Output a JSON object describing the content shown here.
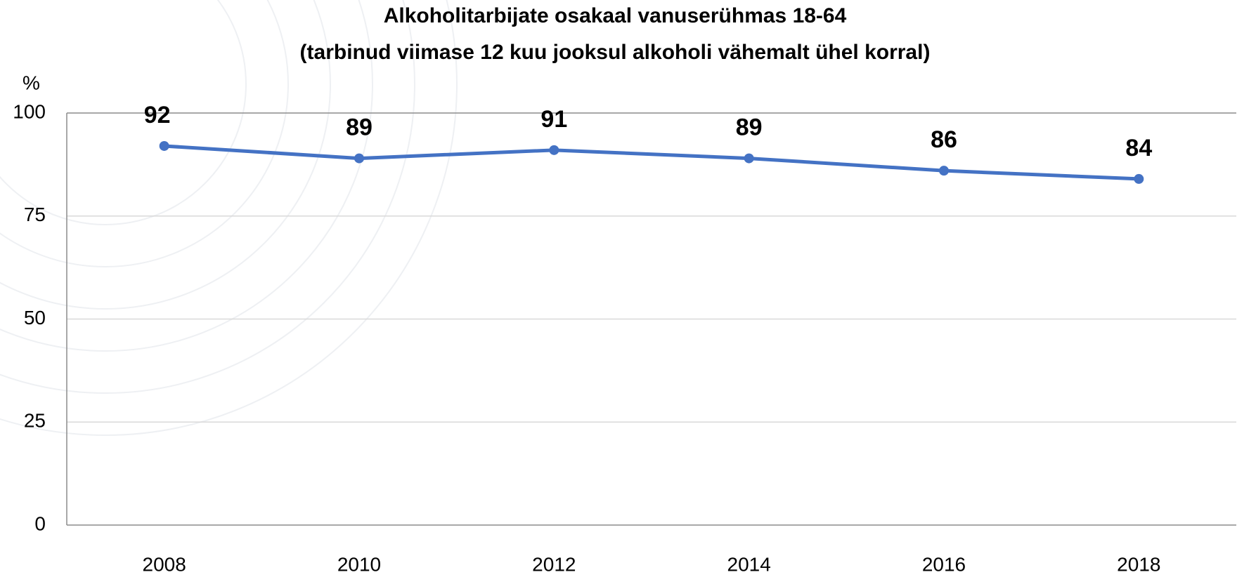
{
  "chart_data": {
    "type": "line",
    "title": "Alkoholitarbijate osakaal vanuserühmas 18-64",
    "subtitle": "(tarbinud viimase 12 kuu jooksul alkoholi vähemalt ühel korral)",
    "y_label": "%",
    "categories": [
      "2008",
      "2010",
      "2012",
      "2014",
      "2016",
      "2018"
    ],
    "series": [
      {
        "color": "#4472c4",
        "values": [
          92,
          89,
          91,
          89,
          86,
          84
        ]
      }
    ],
    "ylim": [
      0,
      100
    ],
    "yticks": [
      0,
      25,
      50,
      75,
      100
    ],
    "grid": true
  }
}
